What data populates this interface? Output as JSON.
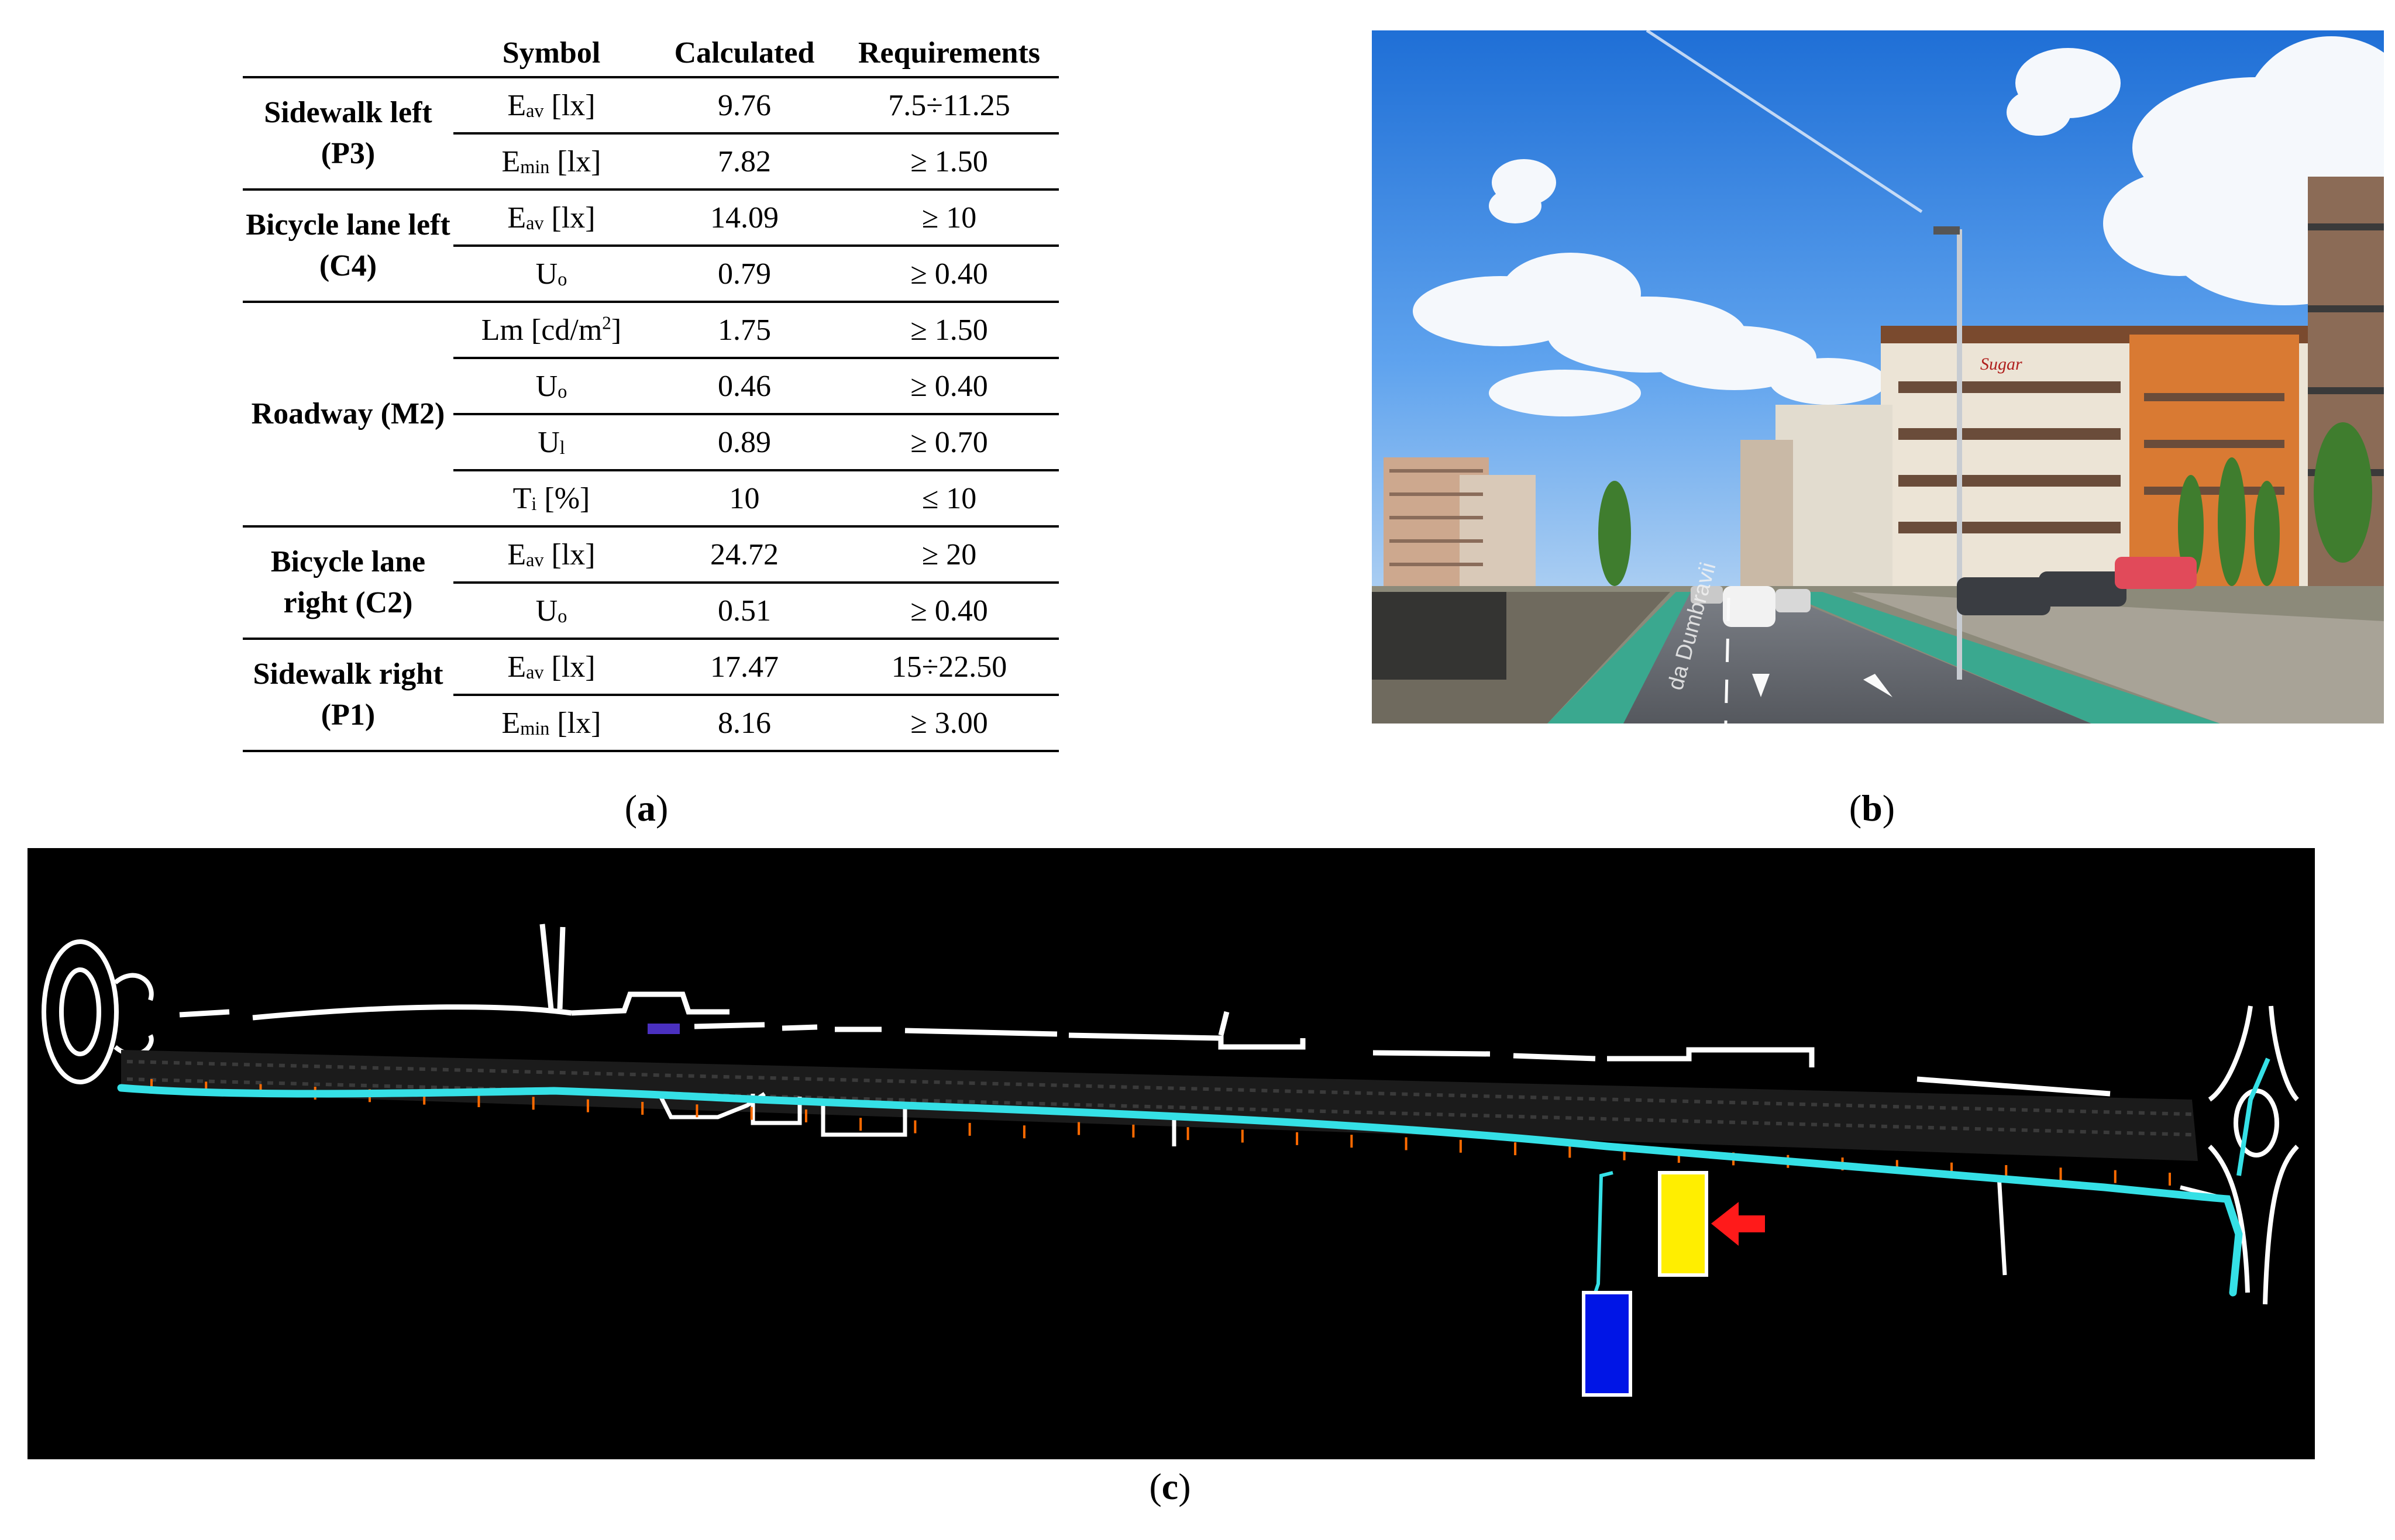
{
  "table": {
    "headers": [
      "",
      "Symbol",
      "Calculated",
      "Requirements"
    ],
    "groups": [
      {
        "name": "Sidewalk left (P3)",
        "rows": [
          {
            "symbol": "E",
            "sub": "av",
            "suffix": " [lx]",
            "calculated": "9.76",
            "requirement": "7.5÷11.25"
          },
          {
            "symbol": "E",
            "sub": "min",
            "suffix": " [lx]",
            "calculated": "7.82",
            "requirement": "≥ 1.50"
          }
        ]
      },
      {
        "name": "Bicycle lane left (C4)",
        "rows": [
          {
            "symbol": "E",
            "sub": "av",
            "suffix": " [lx]",
            "calculated": "14.09",
            "requirement": "≥ 10"
          },
          {
            "symbol": "U",
            "sub": "o",
            "suffix": "",
            "calculated": "0.79",
            "requirement": "≥ 0.40"
          }
        ]
      },
      {
        "name": "Roadway (M2)",
        "rows": [
          {
            "symbol": "Lm [cd/m",
            "sup": "2",
            "suffix": "]",
            "calculated": "1.75",
            "requirement": "≥ 1.50"
          },
          {
            "symbol": "U",
            "sub": "o",
            "suffix": "",
            "calculated": "0.46",
            "requirement": "≥ 0.40"
          },
          {
            "symbol": "U",
            "sub": "l",
            "suffix": "",
            "calculated": "0.89",
            "requirement": "≥ 0.70"
          },
          {
            "symbol": "T",
            "sub": "i",
            "suffix": " [%]",
            "calculated": "10",
            "requirement": "≤ 10"
          }
        ]
      },
      {
        "name": "Bicycle lane right (C2)",
        "rows": [
          {
            "symbol": "E",
            "sub": "av",
            "suffix": " [lx]",
            "calculated": "24.72",
            "requirement": "≥ 20"
          },
          {
            "symbol": "U",
            "sub": "o",
            "suffix": "",
            "calculated": "0.51",
            "requirement": "≥ 0.40"
          }
        ]
      },
      {
        "name": "Sidewalk right (P1)",
        "rows": [
          {
            "symbol": "E",
            "sub": "av",
            "suffix": " [lx]",
            "calculated": "17.47",
            "requirement": "15÷22.50"
          },
          {
            "symbol": "E",
            "sub": "min",
            "suffix": " [lx]",
            "calculated": "8.16",
            "requirement": "≥ 3.00"
          }
        ]
      }
    ]
  },
  "captions": {
    "a": {
      "open": "(",
      "letter": "a",
      "close": ")"
    },
    "b": {
      "open": "(",
      "letter": "b",
      "close": ")"
    },
    "c": {
      "open": "(",
      "letter": "c",
      "close": ")"
    }
  },
  "photo": {
    "sign_text": "Sugar",
    "road_text": "da Dumbravii"
  },
  "map": {
    "colors": {
      "background": "#000000",
      "lane": "#35e0e6",
      "outline": "#ffffff",
      "pole": "#ff6a00",
      "yellow_box": "#ffee00",
      "blue_box": "#0015e6",
      "arrow": "#ff1a1a"
    }
  }
}
